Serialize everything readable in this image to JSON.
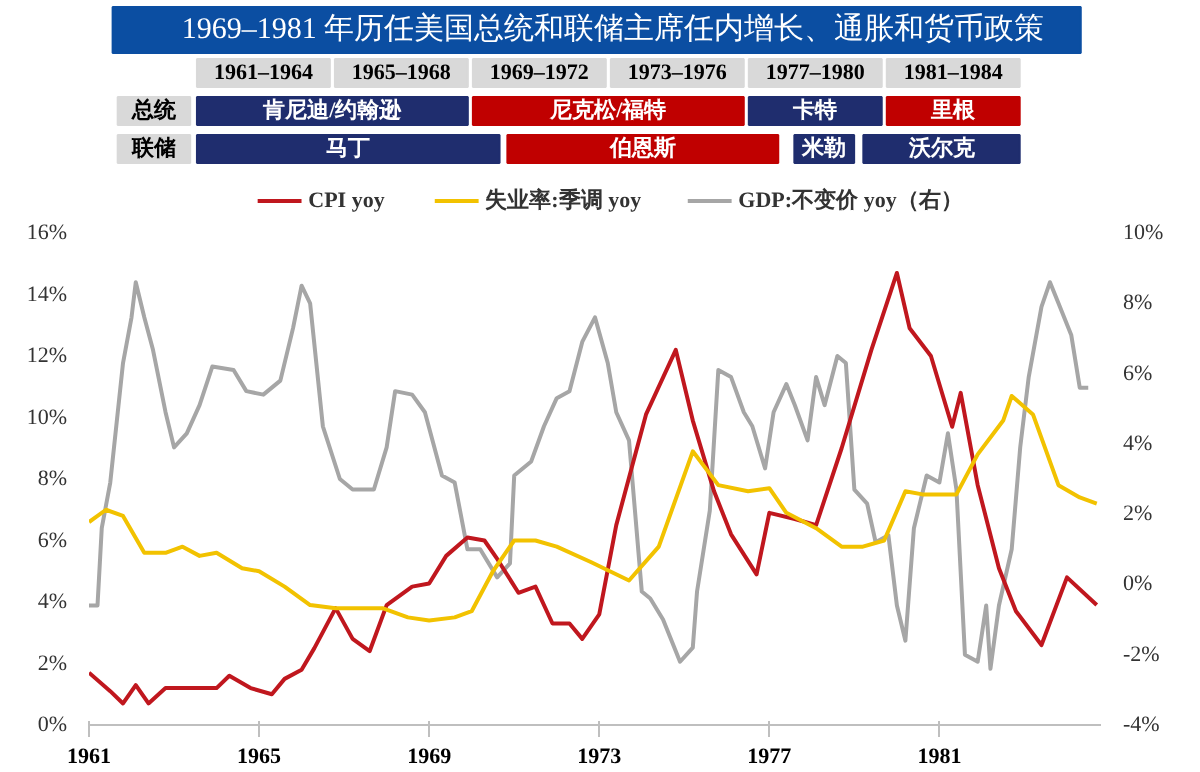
{
  "chart_data": {
    "type": "line",
    "title": "1969–1981 年历任美国总统和联储主席任内增长、通胀和货币政策",
    "annotations": [
      "1961–1964",
      "1965–1968",
      "1969–1972",
      "1973–1976",
      "1977–1980",
      "1981–1984",
      "总统",
      "肯尼迪/约翰逊",
      "尼克松/福特",
      "卡特",
      "里根",
      "联储",
      "马丁",
      "伯恩斯",
      "米勒",
      "沃尔克"
    ],
    "xlim": [
      1961,
      1984.8
    ],
    "xticks": [
      1961,
      1965,
      1969,
      1973,
      1977,
      1981
    ],
    "ylim": [
      0,
      16
    ],
    "yticks": [
      {
        "value": 0,
        "label": "0%"
      },
      {
        "value": 2,
        "label": "2%"
      },
      {
        "value": 4,
        "label": "4%"
      },
      {
        "value": 6,
        "label": "6%"
      },
      {
        "value": 8,
        "label": "8%"
      },
      {
        "value": 10,
        "label": "10%"
      },
      {
        "value": 12,
        "label": "12%"
      },
      {
        "value": 14,
        "label": "14%"
      },
      {
        "value": 16,
        "label": "16%"
      }
    ],
    "y2lim": [
      -4,
      10
    ],
    "y2ticks": [
      {
        "value": -4,
        "label": "-4%"
      },
      {
        "value": -2,
        "label": "-2%"
      },
      {
        "value": 0,
        "label": "0%"
      },
      {
        "value": 2,
        "label": "2%"
      },
      {
        "value": 4,
        "label": "4%"
      },
      {
        "value": 6,
        "label": "6%"
      },
      {
        "value": 8,
        "label": "8%"
      },
      {
        "value": 10,
        "label": "10%"
      }
    ],
    "grid": false,
    "legend": "top",
    "series": [
      {
        "name": "CPI yoy",
        "color": "#c0171e",
        "x": [
          1961.0,
          1961.5,
          1961.8,
          1962.1,
          1962.4,
          1962.8,
          1963.5,
          1964.0,
          1964.3,
          1964.8,
          1965.3,
          1965.6,
          1966.0,
          1966.3,
          1966.8,
          1967.2,
          1967.6,
          1968.0,
          1968.6,
          1969.0,
          1969.4,
          1969.9,
          1970.3,
          1970.6,
          1971.1,
          1971.5,
          1971.9,
          1972.3,
          1972.6,
          1973.0,
          1973.4,
          1974.1,
          1974.8,
          1975.2,
          1975.7,
          1976.1,
          1976.7,
          1977.0,
          1977.6,
          1978.1,
          1978.7,
          1979.4,
          1980.0,
          1980.3,
          1980.8,
          1981.3,
          1981.5,
          1981.9,
          1982.4,
          1982.8,
          1983.4,
          1984.0,
          1984.7
        ],
        "values": [
          1.7,
          1.1,
          0.7,
          1.3,
          0.7,
          1.2,
          1.2,
          1.2,
          1.6,
          1.2,
          1.0,
          1.5,
          1.8,
          2.5,
          3.8,
          2.8,
          2.4,
          3.9,
          4.5,
          4.6,
          5.5,
          6.1,
          6.0,
          5.4,
          4.3,
          4.5,
          3.3,
          3.3,
          2.8,
          3.6,
          6.5,
          10.1,
          12.2,
          9.9,
          7.6,
          6.2,
          4.9,
          6.9,
          6.7,
          6.5,
          9.0,
          12.2,
          14.7,
          12.9,
          12.0,
          9.7,
          10.8,
          7.8,
          5.1,
          3.7,
          2.6,
          4.8,
          3.9
        ]
      },
      {
        "name": "失业率:季调 yoy",
        "color": "#f2c200",
        "x": [
          1961.0,
          1961.4,
          1961.8,
          1962.3,
          1962.8,
          1963.2,
          1963.6,
          1964.0,
          1964.6,
          1965.0,
          1965.6,
          1966.2,
          1966.8,
          1967.4,
          1967.9,
          1968.5,
          1969.0,
          1969.6,
          1970.0,
          1970.5,
          1971.0,
          1971.5,
          1972.0,
          1972.8,
          1973.7,
          1974.4,
          1975.2,
          1975.8,
          1976.5,
          1977.0,
          1977.4,
          1978.1,
          1978.7,
          1979.2,
          1979.7,
          1980.2,
          1980.6,
          1981.4,
          1981.9,
          1982.5,
          1982.7,
          1983.2,
          1983.8,
          1984.3,
          1984.7
        ],
        "values": [
          6.6,
          7.0,
          6.8,
          5.6,
          5.6,
          5.8,
          5.5,
          5.6,
          5.1,
          5.0,
          4.5,
          3.9,
          3.8,
          3.8,
          3.8,
          3.5,
          3.4,
          3.5,
          3.7,
          5.0,
          6.0,
          6.0,
          5.8,
          5.3,
          4.7,
          5.8,
          8.9,
          7.8,
          7.6,
          7.7,
          6.9,
          6.4,
          5.8,
          5.8,
          6.0,
          7.6,
          7.5,
          7.5,
          8.8,
          9.9,
          10.7,
          10.1,
          7.8,
          7.4,
          7.2
        ]
      },
      {
        "name": "GDP:不变价 yoy（右）",
        "color": "#a6a6a6",
        "axis": "y2",
        "x": [
          1961.0,
          1961.2,
          1961.3,
          1961.5,
          1961.8,
          1962.0,
          1962.1,
          1962.3,
          1962.5,
          1962.8,
          1963.0,
          1963.3,
          1963.6,
          1963.9,
          1964.4,
          1964.7,
          1965.1,
          1965.5,
          1965.8,
          1966.0,
          1966.2,
          1966.5,
          1966.9,
          1967.2,
          1967.7,
          1968.0,
          1968.2,
          1968.6,
          1968.9,
          1969.3,
          1969.6,
          1969.9,
          1970.2,
          1970.6,
          1970.9,
          1971.0,
          1971.4,
          1971.7,
          1972.0,
          1972.3,
          1972.6,
          1972.9,
          1973.2,
          1973.4,
          1973.7,
          1974.0,
          1974.2,
          1974.5,
          1974.9,
          1975.2,
          1975.3,
          1975.6,
          1975.8,
          1976.1,
          1976.4,
          1976.6,
          1976.9,
          1977.1,
          1977.4,
          1977.6,
          1977.9,
          1978.1,
          1978.3,
          1978.6,
          1978.8,
          1979.0,
          1979.3,
          1979.5,
          1979.8,
          1980.0,
          1980.2,
          1980.4,
          1980.7,
          1981.0,
          1981.2,
          1981.4,
          1981.6,
          1981.9,
          1982.1,
          1982.2,
          1982.4,
          1982.7,
          1982.9,
          1983.1,
          1983.4,
          1983.6,
          1983.8,
          1984.1,
          1984.3,
          1984.5
        ],
        "values": [
          -0.6,
          -0.6,
          1.6,
          2.9,
          6.3,
          7.6,
          8.6,
          7.6,
          6.7,
          4.9,
          3.9,
          4.3,
          5.1,
          6.2,
          6.1,
          5.5,
          5.4,
          5.8,
          7.3,
          8.5,
          8.0,
          4.5,
          3.0,
          2.7,
          2.7,
          3.9,
          5.5,
          5.4,
          4.9,
          3.1,
          2.9,
          1.0,
          1.0,
          0.2,
          0.6,
          3.1,
          3.5,
          4.5,
          5.3,
          5.5,
          6.9,
          7.6,
          6.3,
          4.9,
          4.1,
          -0.2,
          -0.4,
          -1.0,
          -2.2,
          -1.8,
          -0.2,
          2.1,
          6.1,
          5.9,
          4.9,
          4.5,
          3.3,
          4.9,
          5.7,
          5.1,
          4.1,
          5.9,
          5.1,
          6.5,
          6.3,
          2.7,
          2.3,
          1.2,
          1.4,
          -0.6,
          -1.6,
          1.6,
          3.1,
          2.9,
          4.3,
          2.7,
          -2.0,
          -2.2,
          -0.6,
          -2.4,
          -0.6,
          1.0,
          3.9,
          5.9,
          7.9,
          8.6,
          8.0,
          7.1,
          5.6,
          5.6
        ]
      }
    ]
  }
}
